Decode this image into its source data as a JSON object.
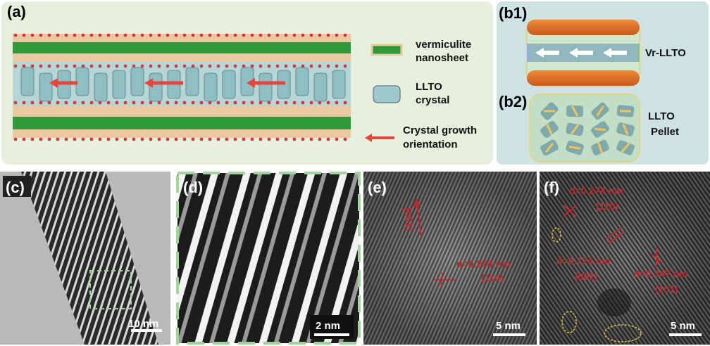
{
  "panel_a": {
    "label": "(a)",
    "legend": {
      "vermiculite": [
        "vermiculite",
        "nanosheet"
      ],
      "llto": [
        "LLTO",
        "crystal"
      ],
      "growth": [
        "Crystal growth",
        "orientation"
      ]
    }
  },
  "panel_b1": {
    "label": "(b1)",
    "caption": "Vr-LLTO"
  },
  "panel_b2": {
    "label": "(b2)",
    "caption": [
      "LLTO",
      "Pellet"
    ]
  },
  "panel_c": {
    "label": "(c)",
    "scale_bar": "10 nm"
  },
  "panel_d": {
    "label": "(d)",
    "scale_bar": "2 nm"
  },
  "panel_e": {
    "label": "(e)",
    "direction": "[001]",
    "annotation": [
      "d=0.274 nm",
      "(110)"
    ],
    "scale_bar": "5 nm"
  },
  "panel_f": {
    "label": "(f)",
    "annotations": [
      [
        "d=0.274 nm",
        "(110)"
      ],
      [
        "d=0.774 nm",
        "(001)"
      ],
      [
        "d=0.347 nm",
        "(101)"
      ]
    ],
    "scale_bar": "5 nm"
  }
}
